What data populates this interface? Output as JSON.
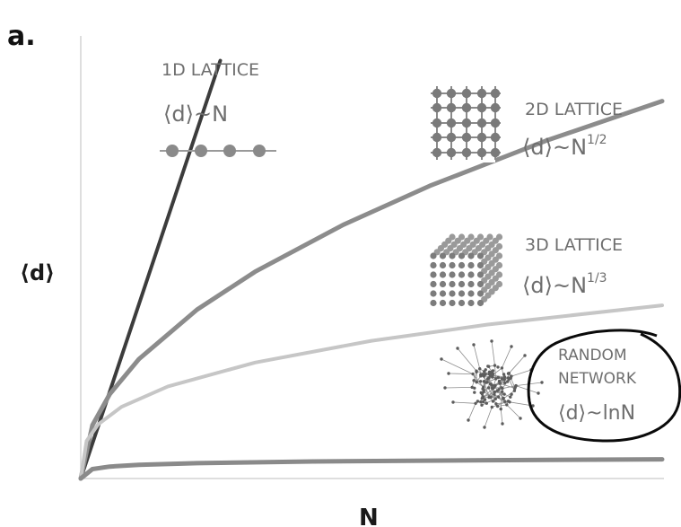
{
  "panel_label": "a.",
  "chart_data": {
    "type": "line",
    "xlabel": "N",
    "ylabel": "⟨d⟩",
    "grid": false,
    "series": [
      {
        "name": "1D LATTICE",
        "formula": "⟨d⟩~N",
        "color": "#3c3c3c",
        "x": [
          0,
          0.24
        ],
        "y": [
          0,
          0.98
        ]
      },
      {
        "name": "2D LATTICE",
        "formula": "⟨d⟩~N",
        "exponent": "1/2",
        "color": "#8c8c8c",
        "x": [
          0,
          0.02,
          0.05,
          0.1,
          0.2,
          0.3,
          0.45,
          0.6,
          0.8,
          1.0
        ],
        "y": [
          0,
          0.125,
          0.198,
          0.28,
          0.396,
          0.485,
          0.594,
          0.686,
          0.792,
          0.885
        ]
      },
      {
        "name": "3D LATTICE",
        "formula": "⟨d⟩~N",
        "exponent": "1/3",
        "color": "#c6c6c6",
        "x": [
          0,
          0.01,
          0.03,
          0.07,
          0.15,
          0.3,
          0.5,
          0.7,
          1.0
        ],
        "y": [
          0,
          0.088,
          0.127,
          0.168,
          0.216,
          0.272,
          0.323,
          0.361,
          0.406
        ]
      },
      {
        "name": "RANDOM NETWORK",
        "name_lines": [
          "RANDOM",
          "NETWORK"
        ],
        "formula": "⟨d⟩~lnN",
        "color": "#8a8a8a",
        "x": [
          0,
          0.02,
          0.05,
          0.1,
          0.2,
          0.4,
          0.7,
          1.0
        ],
        "y": [
          0,
          0.022,
          0.028,
          0.032,
          0.036,
          0.04,
          0.043,
          0.045
        ]
      }
    ]
  },
  "icons": {
    "chain": "one-dimensional chain icon",
    "grid": "two-dimensional grid icon",
    "cube": "three-dimensional lattice cube icon",
    "network": "random network icon"
  }
}
